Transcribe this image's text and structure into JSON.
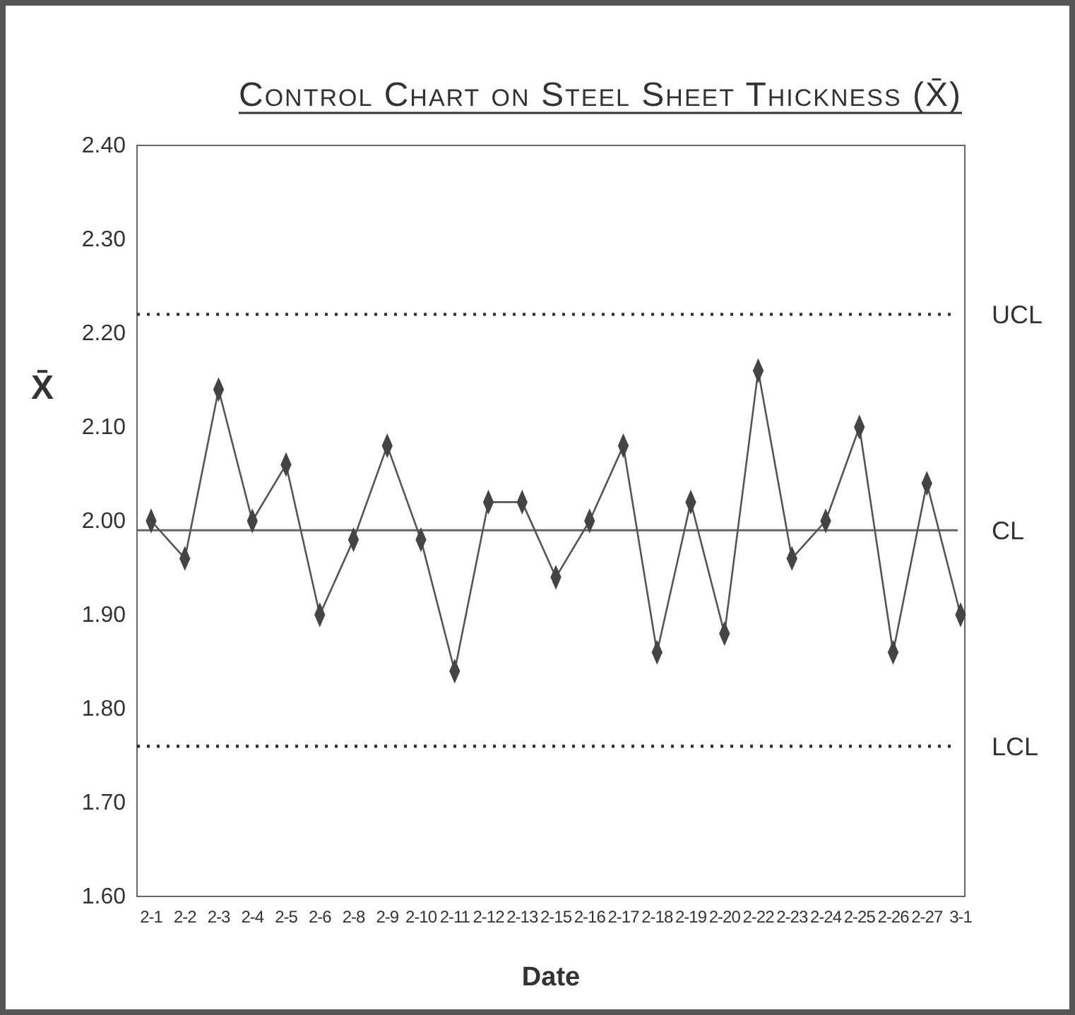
{
  "chart_data": {
    "type": "line",
    "title": "Control Chart on Steel Sheet Thickness (X̄)",
    "xlabel": "Date",
    "ylabel": "X̄",
    "categories": [
      "2-1",
      "2-2",
      "2-3",
      "2-4",
      "2-5",
      "2-6",
      "2-8",
      "2-9",
      "2-10",
      "2-11",
      "2-12",
      "2-13",
      "2-15",
      "2-16",
      "2-17",
      "2-18",
      "2-19",
      "2-20",
      "2-22",
      "2-23",
      "2-24",
      "2-25",
      "2-26",
      "2-27",
      "3-1"
    ],
    "series": [
      {
        "color": "#555555",
        "values": [
          2.0,
          1.96,
          2.14,
          2.0,
          2.06,
          1.9,
          1.98,
          2.08,
          1.98,
          1.84,
          2.02,
          2.02,
          1.94,
          2.0,
          2.08,
          1.86,
          2.02,
          1.88,
          2.16,
          1.96,
          2.0,
          2.1,
          1.86,
          2.04,
          1.9
        ]
      }
    ],
    "marker": "diamond",
    "line_style": "solid",
    "ylim": [
      1.6,
      2.4
    ],
    "yticks": [
      {
        "value": 1.6,
        "label": "1.60"
      },
      {
        "value": 1.7,
        "label": "1.70"
      },
      {
        "value": 1.8,
        "label": "1.80"
      },
      {
        "value": 1.9,
        "label": "1.90"
      },
      {
        "value": 2.0,
        "label": "2.00"
      },
      {
        "value": 2.1,
        "label": "2.10"
      },
      {
        "value": 2.2,
        "label": "2.20"
      },
      {
        "value": 2.3,
        "label": "2.30"
      },
      {
        "value": 2.4,
        "label": "2.40"
      }
    ],
    "ref_lines": [
      {
        "axis": "y",
        "value": 2.22,
        "label": "UCL",
        "line_style": "dotted",
        "color": "#333333"
      },
      {
        "axis": "y",
        "value": 1.99,
        "label": "CL",
        "line_style": "solid",
        "color": "#666666"
      },
      {
        "axis": "y",
        "value": 1.76,
        "label": "LCL",
        "line_style": "dotted",
        "color": "#333333"
      }
    ]
  }
}
